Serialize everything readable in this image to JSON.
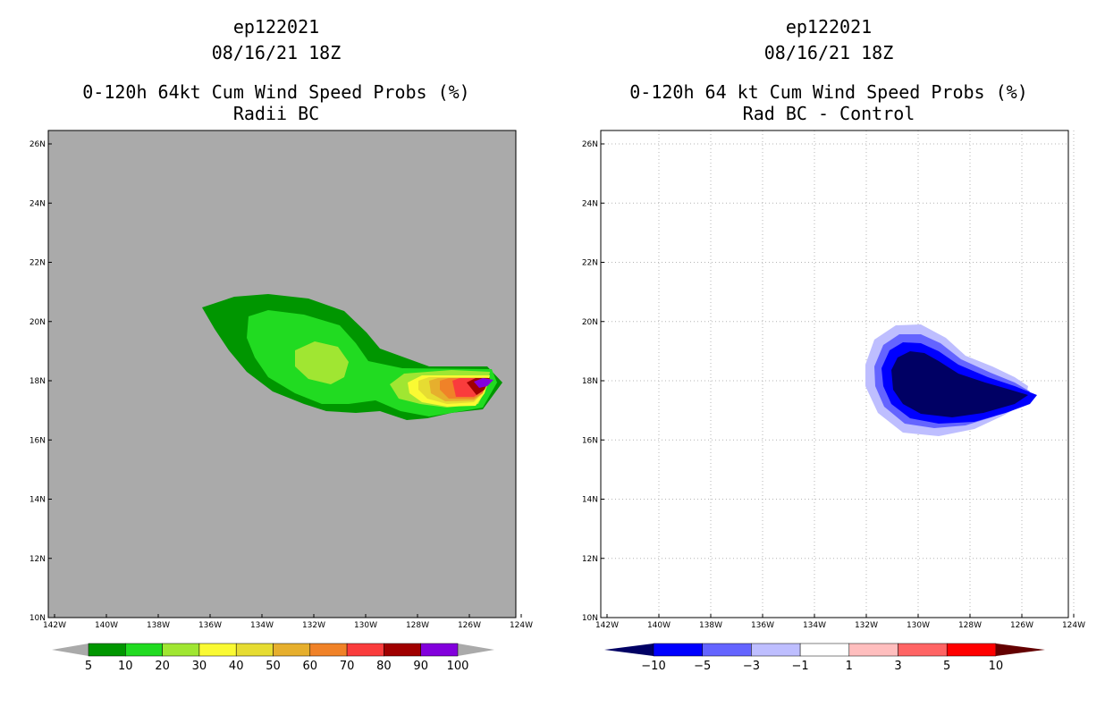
{
  "left_panel": {
    "title_lines": [
      "ep122021",
      "08/16/21 18Z",
      "0-120h 64kt Cum Wind Speed Probs (%)",
      "Radii BC"
    ],
    "lat_labels": [
      "26N",
      "24N",
      "22N",
      "20N",
      "18N",
      "16N",
      "14N",
      "12N",
      "10N"
    ],
    "lon_labels": [
      "142W",
      "140W",
      "138W",
      "136W",
      "134W",
      "132W",
      "130W",
      "128W",
      "126W",
      "124W"
    ],
    "colorbar": {
      "labels": [
        "5",
        "10",
        "20",
        "30",
        "40",
        "50",
        "60",
        "70",
        "80",
        "90",
        "100"
      ],
      "colors": [
        "#009600",
        "#21db21",
        "#a0e632",
        "#fafa33",
        "#e6dc32",
        "#e6af2d",
        "#f08228",
        "#fa3c3c",
        "#a00000",
        "#8200dc"
      ]
    }
  },
  "right_panel": {
    "title_lines": [
      "ep122021",
      "08/16/21 18Z",
      "0-120h 64 kt Cum Wind Speed Probs (%)",
      "Rad BC - Control"
    ],
    "lat_labels": [
      "26N",
      "24N",
      "22N",
      "20N",
      "18N",
      "16N",
      "14N",
      "12N",
      "10N"
    ],
    "lon_labels": [
      "142W",
      "140W",
      "138W",
      "136W",
      "134W",
      "132W",
      "130W",
      "128W",
      "126W",
      "124W"
    ],
    "colorbar": {
      "labels": [
        "-10",
        "-5",
        "-3",
        "-1",
        "1",
        "3",
        "5",
        "10"
      ],
      "colors": [
        "#000064",
        "#0000ff",
        "#6464ff",
        "#bebeff",
        "#ffffff",
        "#ffbebe",
        "#ff6464",
        "#ff0000",
        "#640000"
      ]
    }
  },
  "colors": {
    "map_background": "#aaaaaa",
    "frame": "#000000",
    "grid": "#b4b4b4"
  }
}
